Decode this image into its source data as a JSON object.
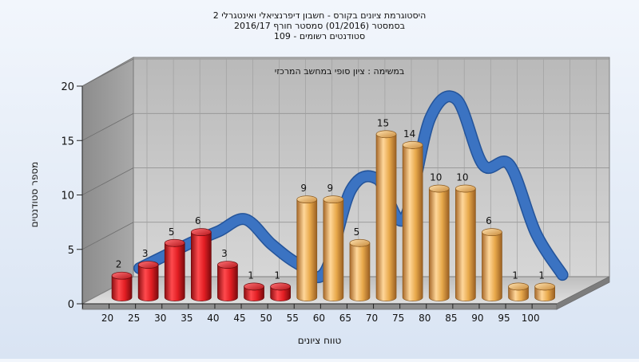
{
  "chart_data": {
    "type": "bar",
    "title_lines": [
      "היסטוגרמת ציונים בקורס - חשבון דיפרנציאלי ואינטגרלי 2",
      "בסמסטר  (01/2016)  סמסטר חורף 2016/17",
      "סטודנטים רשומים - 109"
    ],
    "subtitle": "במשימה : ציון סופי במחשב המרכזי",
    "xlabel": "טווח ציונים",
    "ylabel": "מספר סטודנטים",
    "ylim": [
      0,
      20
    ],
    "yticks": [
      0,
      5,
      10,
      15,
      20
    ],
    "categories": [
      "20",
      "25",
      "30",
      "35",
      "40",
      "45",
      "50",
      "55",
      "60",
      "65",
      "70",
      "75",
      "80",
      "85",
      "90",
      "95",
      "100"
    ],
    "values": [
      2,
      3,
      5,
      6,
      3,
      1,
      1,
      9,
      9,
      5,
      15,
      14,
      10,
      10,
      6,
      1,
      1
    ],
    "bar_colors": [
      "red",
      "red",
      "red",
      "red",
      "red",
      "red",
      "red",
      "gold",
      "gold",
      "gold",
      "gold",
      "gold",
      "gold",
      "gold",
      "gold",
      "gold",
      "gold"
    ],
    "trend_line": {
      "x": [
        "20",
        "25",
        "30",
        "35",
        "40",
        "45",
        "50",
        "55",
        "60",
        "65",
        "70",
        "75",
        "80",
        "85",
        "90",
        "95",
        "100"
      ],
      "values": [
        1.8,
        3.0,
        4.2,
        5.2,
        6.3,
        4.0,
        2.2,
        1.4,
        9.0,
        10.0,
        6.3,
        15.6,
        17.3,
        11.3,
        11.3,
        5.0,
        1.2
      ]
    },
    "grid": true,
    "style": "3d",
    "colors": {
      "red_bar": "#e21e23",
      "gold_bar": "#e8a94b",
      "trend": "#3b73c2",
      "plot_back": "#c8c8c8",
      "side_wall": "#9a9a9a"
    }
  }
}
